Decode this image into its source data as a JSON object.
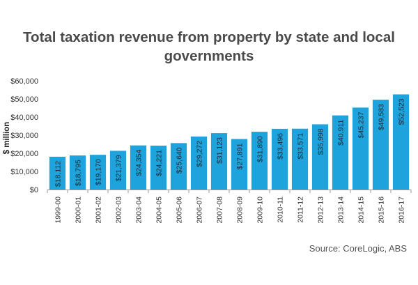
{
  "chart_data": {
    "type": "bar",
    "title": "Total taxation revenue from property by state and local governments",
    "title_lines": [
      "Total taxation revenue from property by state and local",
      "governments"
    ],
    "ylabel": "$ million",
    "xlabel": "",
    "ylim": [
      0,
      60000
    ],
    "yticks": [
      0,
      10000,
      20000,
      30000,
      40000,
      50000,
      60000
    ],
    "ytick_labels": [
      "$0",
      "$10,000",
      "$20,000",
      "$30,000",
      "$40,000",
      "$50,000",
      "$60,000"
    ],
    "categories": [
      "1999-00",
      "2000-01",
      "2001-02",
      "2002-03",
      "2003-04",
      "2004-05",
      "2005-06",
      "2006-07",
      "2007-08",
      "2008-09",
      "2009-10",
      "2010-11",
      "2011-12",
      "2012-13",
      "2013-14",
      "2014-15",
      "2015-16",
      "2016-17"
    ],
    "values": [
      18112,
      18795,
      19170,
      21379,
      24354,
      24221,
      25640,
      29272,
      31123,
      27891,
      31890,
      33496,
      33571,
      35998,
      40911,
      45237,
      49583,
      52523
    ],
    "data_labels": [
      "$18,112",
      "$18,795",
      "$19,170",
      "$21,379",
      "$24,354",
      "$24,221",
      "$25,640",
      "$29,272",
      "$31,123",
      "$27,891",
      "$31,890",
      "$33,496",
      "$33,571",
      "$35,998",
      "$40,911",
      "$45,237",
      "$49,583",
      "$52,523"
    ],
    "grid": false,
    "legend": "none",
    "bar_color": "#1ea3dd",
    "axis_color": "#9a9a9a"
  },
  "source": "Source: CoreLogic, ABS"
}
